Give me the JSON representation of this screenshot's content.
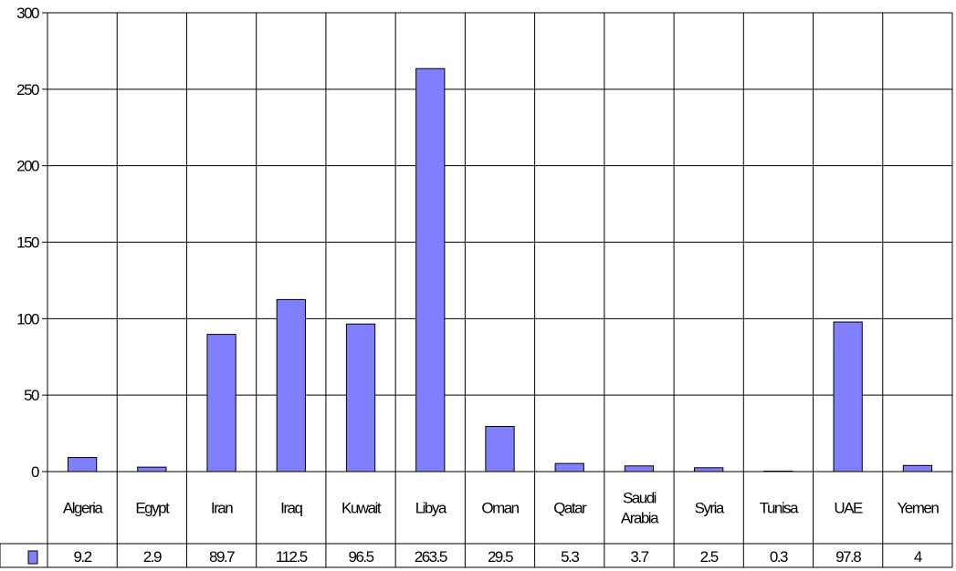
{
  "chart_data": {
    "type": "bar",
    "categories": [
      "Algeria",
      "Egypt",
      "Iran",
      "Iraq",
      "Kuwait",
      "Libya",
      "Oman",
      "Qatar",
      "Saudi Arabia",
      "Syria",
      "Tunisa",
      "UAE",
      "Yemen"
    ],
    "category_lines": [
      [
        "Algeria"
      ],
      [
        "Egypt"
      ],
      [
        "Iran"
      ],
      [
        "Iraq"
      ],
      [
        "Kuwait"
      ],
      [
        "Libya"
      ],
      [
        "Oman"
      ],
      [
        "Qatar"
      ],
      [
        "Saudi",
        "Arabia"
      ],
      [
        "Syria"
      ],
      [
        "Tunisa"
      ],
      [
        "UAE"
      ],
      [
        "Yemen"
      ]
    ],
    "values": [
      9.2,
      2.9,
      89.7,
      112.5,
      96.5,
      263.5,
      29.5,
      5.3,
      3.7,
      2.5,
      0.3,
      97.8,
      4
    ],
    "value_labels": [
      "9.2",
      "2.9",
      "89.7",
      "112.5",
      "96.5",
      "263.5",
      "29.5",
      "5.3",
      "3.7",
      "2.5",
      "0.3",
      "97.8",
      "4"
    ],
    "title": "",
    "xlabel": "",
    "ylabel": "",
    "ylim": [
      0,
      300
    ],
    "yticks": [
      0,
      50,
      100,
      150,
      200,
      250,
      300
    ],
    "grid": true,
    "data_table": true,
    "bar_color": "#8080ff",
    "bar_stroke": "#000000"
  }
}
